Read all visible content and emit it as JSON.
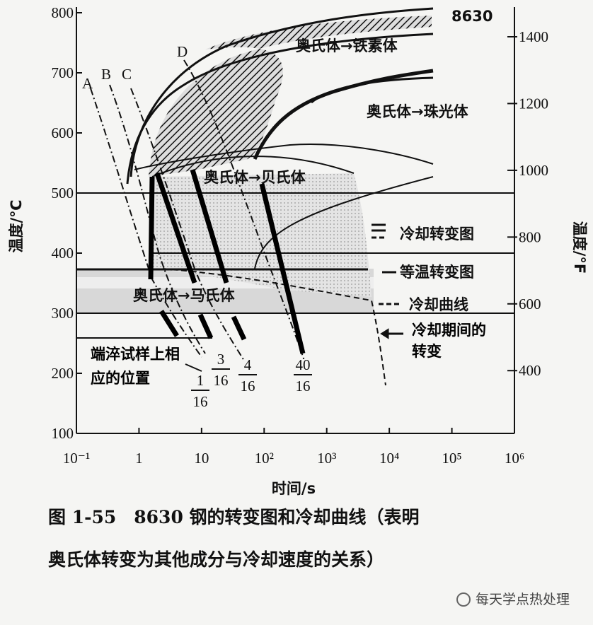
{
  "chart_data": {
    "type": "line",
    "xlabel": "时间/s",
    "ylabel": "温度/℃",
    "y2label": "温度/°F",
    "xscale": "log",
    "xlim": [
      0.1,
      1000000
    ],
    "xticks": [
      {
        "value": 0.1,
        "label": "10⁻¹"
      },
      1,
      10,
      {
        "value": 100,
        "label": "10²"
      },
      {
        "value": 1000,
        "label": "10³"
      },
      {
        "value": 10000,
        "label": "10⁴"
      },
      {
        "value": 100000,
        "label": "10⁵"
      },
      {
        "value": 1000000,
        "label": "10⁶"
      }
    ],
    "ylim": [
      100,
      800
    ],
    "yticks": [
      100,
      200,
      300,
      400,
      500,
      600,
      700,
      800
    ],
    "y2lim": [
      212,
      1472
    ],
    "y2ticks": [
      400,
      600,
      800,
      1000,
      1200,
      1400
    ],
    "steel": "8630",
    "regions": [
      "奥氏体→铁素体",
      "奥氏体→珠光体",
      "奥氏体→贝氏体",
      "奥氏体→马氏体"
    ],
    "curves": [
      "A",
      "B",
      "C",
      "D"
    ],
    "legend": [
      "冷却转变图",
      "等温转变图",
      "冷却曲线",
      "冷却期间的转变"
    ],
    "end_quench_title": "端淬试样上相应的位置",
    "end_quench_positions": [
      {
        "numerator": "1",
        "denominator": "16"
      },
      {
        "numerator": "3",
        "denominator": "16"
      },
      {
        "numerator": "4",
        "denominator": "16"
      },
      {
        "numerator": "40",
        "denominator": "16"
      }
    ]
  },
  "caption": [
    "图 1-55　8630 钢的转变图和冷却曲线（表明",
    "奥氏体转变为其他成分与冷却速度的关系）"
  ],
  "watermark": "每天学点热处理"
}
